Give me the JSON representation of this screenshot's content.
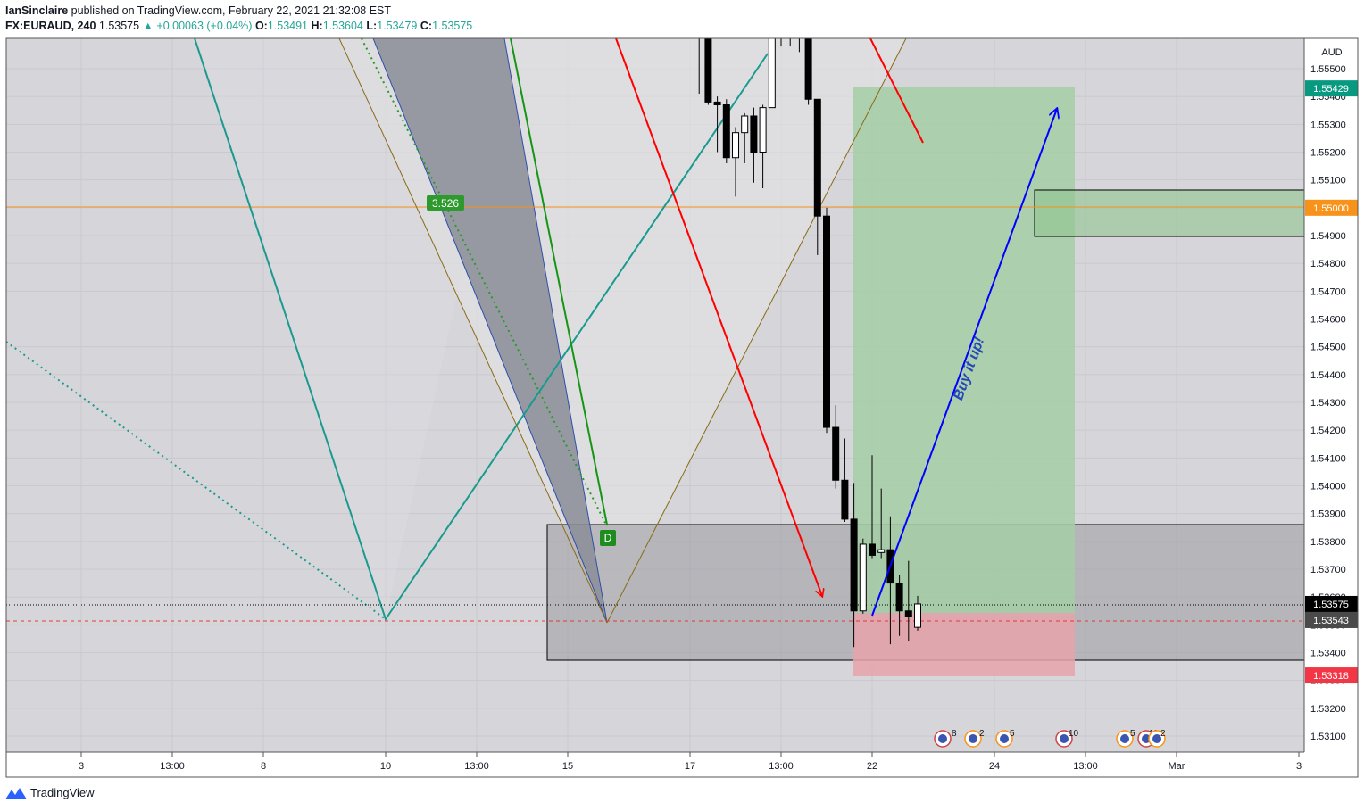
{
  "header": {
    "publisher": "IanSinclaire",
    "published_text": "published on TradingView.com, February 22, 2021 21:32:08 EST",
    "symbol": "FX:EURAUD, 240",
    "last": "1.53575",
    "change": "▲ +0.00063 (+0.04%)",
    "o_label": "O:",
    "o": "1.53491",
    "h_label": "H:",
    "h": "1.53604",
    "l_label": "L:",
    "l": "1.53479",
    "c_label": "C:",
    "c": "1.53575"
  },
  "footer": {
    "brand": "TradingView"
  },
  "colors": {
    "up": "#26a69a",
    "bull_candle": "#ffffff",
    "bear_candle": "#000000",
    "tp_zone": "#a5cfa5",
    "sl_zone": "#e8a3ab",
    "current_price": "#000000",
    "level_orange": "#f7931a",
    "target_label": "#089981",
    "stop_label": "#f23645"
  },
  "chart_data": {
    "type": "candlestick",
    "symbol": "FX:EURAUD",
    "timeframe": "240",
    "currency": "AUD",
    "y_range": [
      1.5305,
      1.5563
    ],
    "y_ticks": [
      "1.55500",
      "1.55400",
      "1.55300",
      "1.55200",
      "1.55100",
      "1.55000",
      "1.54900",
      "1.54800",
      "1.54700",
      "1.54600",
      "1.54500",
      "1.54400",
      "1.54300",
      "1.54200",
      "1.54100",
      "1.54000",
      "1.53900",
      "1.53800",
      "1.53700",
      "1.53600",
      "1.53500",
      "1.53400",
      "1.53300",
      "1.53200",
      "1.53100"
    ],
    "x_ticks": [
      "3",
      "13:00",
      "8",
      "10",
      "13:00",
      "15",
      "17",
      "13:00",
      "22",
      "24",
      "13:00",
      "Mar",
      "3"
    ],
    "price_labels": [
      {
        "text": "1.55429",
        "value": 1.55429,
        "kind": "target"
      },
      {
        "text": "1.55000",
        "value": 1.55,
        "kind": "level"
      },
      {
        "text": "1.53575",
        "value": 1.53575,
        "kind": "last"
      },
      {
        "text": "1.53543",
        "value": 1.53543,
        "kind": "entry"
      },
      {
        "text": "1.53318",
        "value": 1.53318,
        "kind": "stop"
      }
    ],
    "candles": [
      {
        "o": 1.5562,
        "h": 1.5565,
        "l": 1.5561,
        "c": 1.5563
      },
      {
        "o": 1.5562,
        "h": 1.5565,
        "l": 1.5541,
        "c": 1.5562
      },
      {
        "o": 1.5562,
        "h": 1.5563,
        "l": 1.5537,
        "c": 1.5538
      },
      {
        "o": 1.5538,
        "h": 1.554,
        "l": 1.552,
        "c": 1.5537
      },
      {
        "o": 1.5537,
        "h": 1.5539,
        "l": 1.5516,
        "c": 1.5518
      },
      {
        "o": 1.5518,
        "h": 1.5529,
        "l": 1.5504,
        "c": 1.5527
      },
      {
        "o": 1.5527,
        "h": 1.5534,
        "l": 1.5516,
        "c": 1.5533
      },
      {
        "o": 1.5533,
        "h": 1.5536,
        "l": 1.5509,
        "c": 1.552
      },
      {
        "o": 1.552,
        "h": 1.5537,
        "l": 1.5507,
        "c": 1.5536
      },
      {
        "o": 1.5536,
        "h": 1.5565,
        "l": 1.5536,
        "c": 1.5565
      },
      {
        "o": 1.5563,
        "h": 1.5565,
        "l": 1.5558,
        "c": 1.5562
      },
      {
        "o": 1.5562,
        "h": 1.5565,
        "l": 1.5558,
        "c": 1.5564
      },
      {
        "o": 1.5563,
        "h": 1.5565,
        "l": 1.5556,
        "c": 1.5563
      },
      {
        "o": 1.5563,
        "h": 1.5563,
        "l": 1.5537,
        "c": 1.5539
      },
      {
        "o": 1.5539,
        "h": 1.5539,
        "l": 1.5483,
        "c": 1.5497
      },
      {
        "o": 1.5497,
        "h": 1.55,
        "l": 1.5419,
        "c": 1.5421
      },
      {
        "o": 1.5421,
        "h": 1.5429,
        "l": 1.5399,
        "c": 1.5402
      },
      {
        "o": 1.5402,
        "h": 1.5417,
        "l": 1.5387,
        "c": 1.5388
      },
      {
        "o": 1.5388,
        "h": 1.5401,
        "l": 1.5342,
        "c": 1.5355
      },
      {
        "o": 1.5355,
        "h": 1.5381,
        "l": 1.5354,
        "c": 1.5379
      },
      {
        "o": 1.5379,
        "h": 1.5411,
        "l": 1.5374,
        "c": 1.5375
      },
      {
        "o": 1.5376,
        "h": 1.5399,
        "l": 1.5374,
        "c": 1.5377
      },
      {
        "o": 1.5377,
        "h": 1.5389,
        "l": 1.5343,
        "c": 1.5365
      },
      {
        "o": 1.5365,
        "h": 1.5368,
        "l": 1.5346,
        "c": 1.5355
      },
      {
        "o": 1.5355,
        "h": 1.5373,
        "l": 1.5344,
        "c": 1.5353
      },
      {
        "o": 1.53491,
        "h": 1.53604,
        "l": 1.53479,
        "c": 1.53575
      }
    ],
    "pattern_label": "3.526",
    "pattern_point": "D",
    "annotation_text": "Buy it up!",
    "event_badges": [
      "8",
      "2",
      "5",
      "10",
      "5",
      "11",
      "2"
    ]
  }
}
